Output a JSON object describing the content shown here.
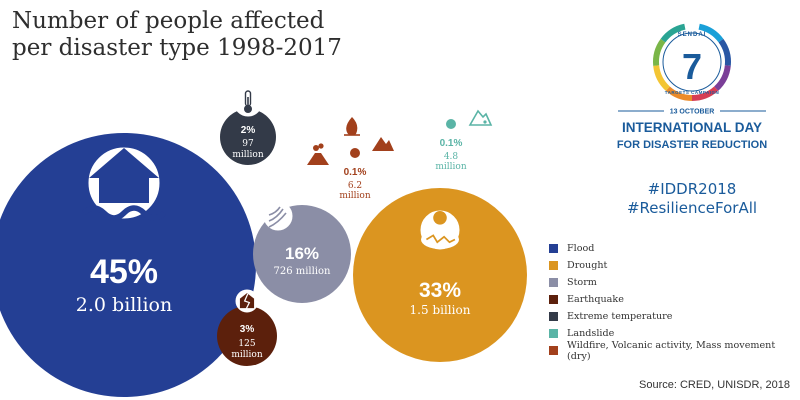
{
  "title": {
    "line1": "Number of people affected",
    "line2": "per disaster type 1998-2017"
  },
  "chart_data": {
    "type": "bubble",
    "title": "Number of people affected per disaster type 1998-2017",
    "unit": "people",
    "series": [
      {
        "name": "Flood",
        "share_label": "45%",
        "value_label": "2.0 billion",
        "share_pct": 45,
        "people": 2000000000,
        "color": "#243f94",
        "icon": "flooded-house-icon"
      },
      {
        "name": "Drought",
        "share_label": "33%",
        "value_label": "1.5 billion",
        "share_pct": 33,
        "people": 1500000000,
        "color": "#db9520",
        "icon": "drought-icon"
      },
      {
        "name": "Storm",
        "share_label": "16%",
        "value_label": "726 million",
        "share_pct": 16,
        "people": 726000000,
        "color": "#8b8ea6",
        "icon": "storm-icon"
      },
      {
        "name": "Earthquake",
        "share_label": "3%",
        "value_label": "125 million",
        "share_pct": 3,
        "people": 125000000,
        "color": "#5c200c",
        "icon": "earthquake-icon"
      },
      {
        "name": "Extreme temperature",
        "share_label": "2%",
        "value_label": "97 million",
        "share_pct": 2,
        "people": 97000000,
        "color": "#333a48",
        "icon": "thermometer-icon"
      },
      {
        "name": "Landslide",
        "share_label": "0.1%",
        "value_label": "4.8 million",
        "share_pct": 0.1,
        "people": 4800000,
        "color": "#5ab4a6",
        "icon": "landslide-icon"
      },
      {
        "name": "Wildfire, Volcanic activity, Mass movement (dry)",
        "share_label": "0.1%",
        "value_label": "6.2 million",
        "share_pct": 0.1,
        "people": 6200000,
        "color": "#a2401c",
        "icon": "wildfire-volcano-icon"
      }
    ]
  },
  "campaign": {
    "number": "7",
    "ring_top": "SENDAI",
    "ring_bottom": "TARGETS CAMPAIGN",
    "date": "13 OCTOBER",
    "day_line1": "INTERNATIONAL DAY",
    "day_line2": "FOR DISASTER REDUCTION",
    "ring_colors": [
      "#1aa0d8",
      "#2a57a4",
      "#7b3f98",
      "#d63d54",
      "#eb8b2a",
      "#f3c534",
      "#7ab648",
      "#2aa493"
    ],
    "text_color": "#1a5b9b"
  },
  "hashtags": [
    "#IDDR2018",
    "#ResilienceForAll"
  ],
  "source": "Source: CRED, UNISDR, 2018"
}
